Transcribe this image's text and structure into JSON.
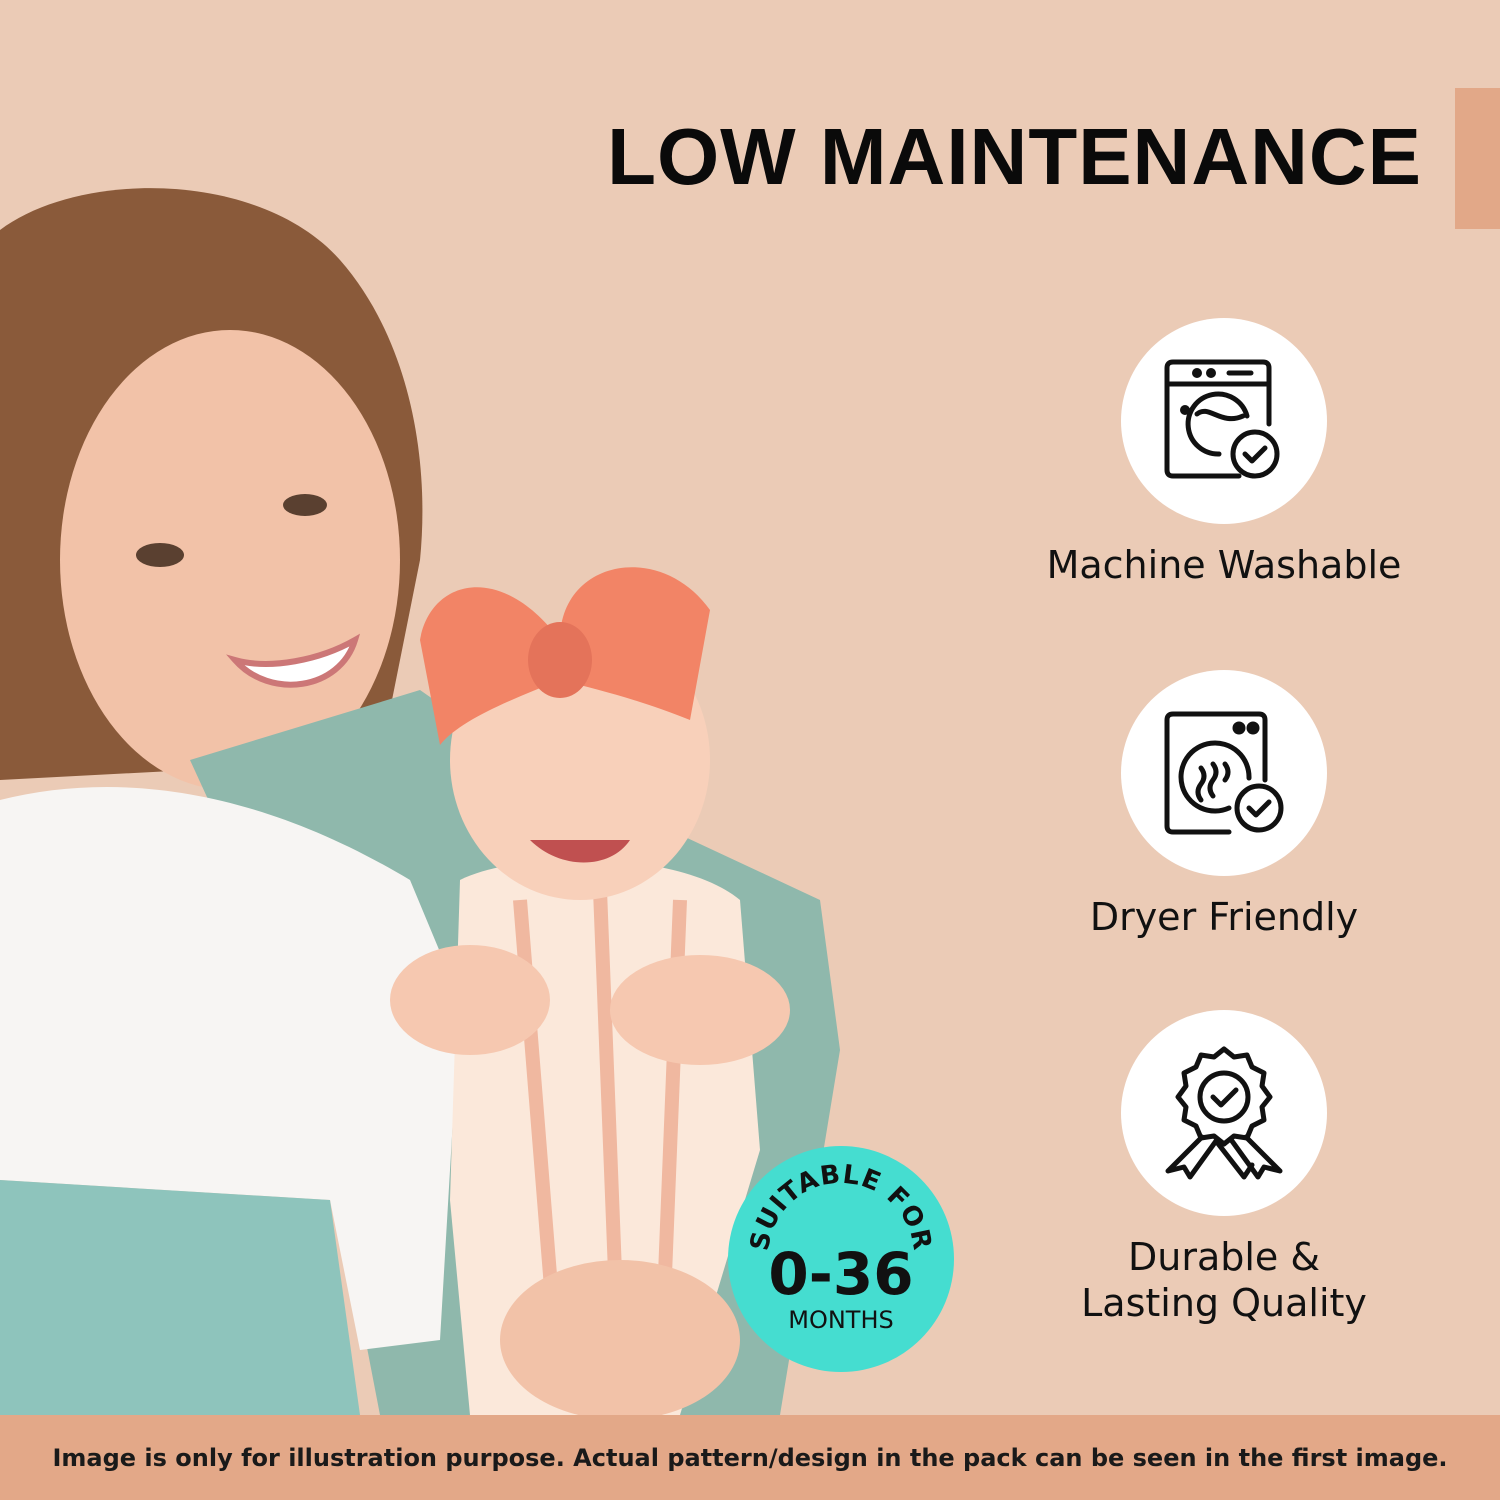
{
  "title": "LOW MAINTENANCE",
  "colors": {
    "background": "#EBCBB6",
    "accent": "#E2A888",
    "badge": "#45DDD0",
    "icon_bg": "#FFFFFF"
  },
  "features": [
    {
      "icon": "washing-machine-check-icon",
      "label": "Machine Washable"
    },
    {
      "icon": "dryer-check-icon",
      "label": "Dryer Friendly"
    },
    {
      "icon": "award-ribbon-check-icon",
      "label_line1": "Durable &",
      "label_line2": "Lasting Quality"
    }
  ],
  "badge": {
    "arc_text": "SUITABLE FOR",
    "range": "0-36",
    "unit": "MONTHS"
  },
  "footer": {
    "disclaimer": "Image is only for illustration purpose. Actual pattern/design in the pack can be seen in the first image."
  }
}
